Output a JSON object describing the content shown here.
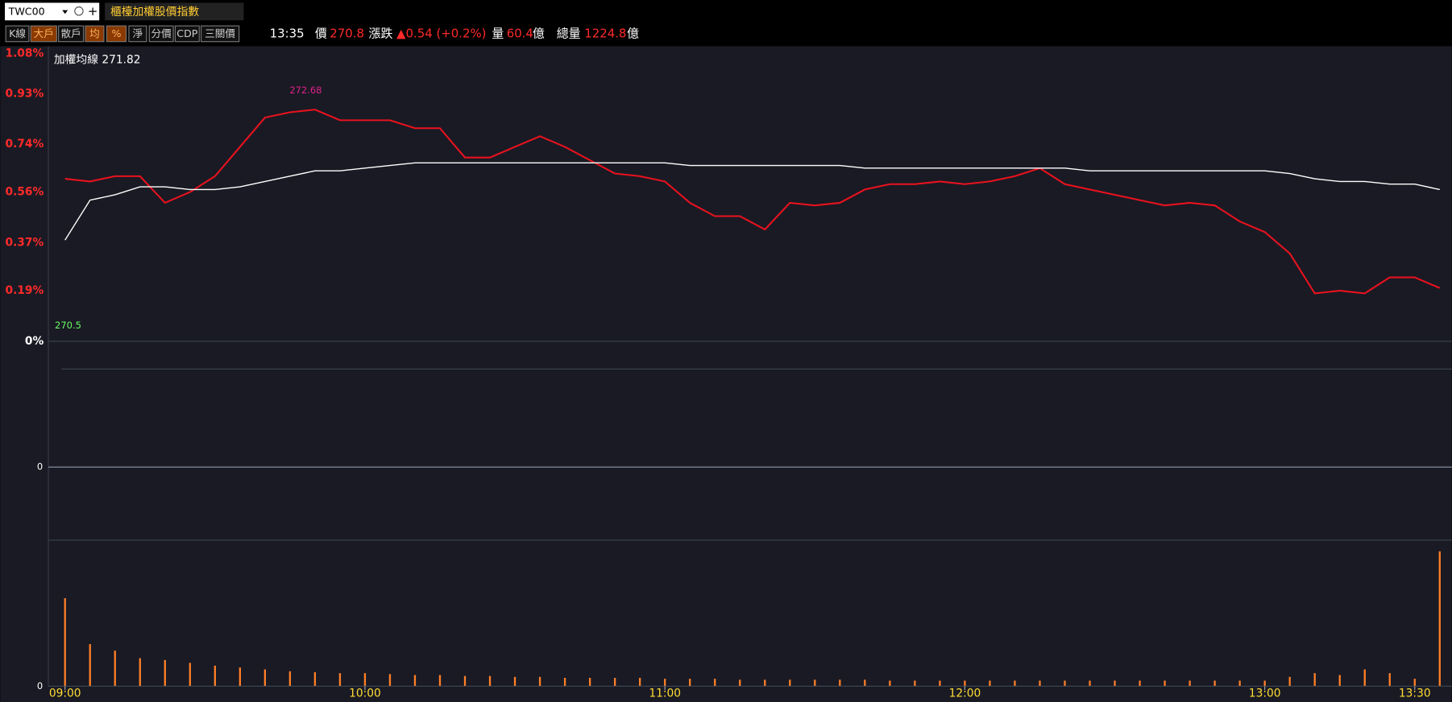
{
  "header": {
    "symbol": "TWC00",
    "name": "櫃檯加權股價指數",
    "buttons": [
      "K線",
      "大戶",
      "散戶",
      "均",
      "%",
      "淨",
      "分價",
      "CDP",
      "三關價"
    ]
  },
  "quote": {
    "time": "13:35",
    "price_label": "價",
    "price": "270.8",
    "change_label": "漲跌",
    "change": "▲0.54 (+0.2%)",
    "volume_label": "量",
    "volume": "60.4",
    "volume_unit": "億",
    "total_label": "總量",
    "total": "1224.8",
    "total_unit": "億"
  },
  "chart_data": [
    {
      "type": "line",
      "legend_label": "加權均線 271.82",
      "max_label": "272.68",
      "base_label": "270.5",
      "x": [
        "09:00",
        "09:05",
        "09:10",
        "09:15",
        "09:20",
        "09:25",
        "09:30",
        "09:35",
        "09:40",
        "09:45",
        "09:50",
        "09:55",
        "10:00",
        "10:05",
        "10:10",
        "10:15",
        "10:20",
        "10:25",
        "10:30",
        "10:35",
        "10:40",
        "10:45",
        "10:50",
        "10:55",
        "11:00",
        "11:05",
        "11:10",
        "11:15",
        "11:20",
        "11:25",
        "11:30",
        "11:35",
        "11:40",
        "11:45",
        "11:50",
        "11:55",
        "12:00",
        "12:05",
        "12:10",
        "12:15",
        "12:20",
        "12:25",
        "12:30",
        "12:35",
        "12:40",
        "12:45",
        "12:50",
        "12:55",
        "13:00",
        "13:05",
        "13:10",
        "13:15",
        "13:20",
        "13:25",
        "13:30",
        "13:35"
      ],
      "ylim": [
        0,
        1.08
      ],
      "yticks": [
        {
          "value": 0,
          "label": "0%"
        },
        {
          "value": 0.19,
          "label": "0.19%"
        },
        {
          "value": 0.37,
          "label": "0.37%"
        },
        {
          "value": 0.56,
          "label": "0.56%"
        },
        {
          "value": 0.74,
          "label": "0.74%"
        },
        {
          "value": 0.93,
          "label": "0.93%"
        },
        {
          "value": 1.08,
          "label": "1.08%"
        }
      ],
      "series": [
        {
          "color": "#e8121e",
          "values": [
            0.61,
            0.6,
            0.62,
            0.62,
            0.52,
            0.56,
            0.62,
            0.73,
            0.84,
            0.86,
            0.87,
            0.83,
            0.83,
            0.83,
            0.8,
            0.8,
            0.69,
            0.69,
            0.73,
            0.77,
            0.73,
            0.68,
            0.63,
            0.62,
            0.6,
            0.52,
            0.47,
            0.47,
            0.42,
            0.52,
            0.51,
            0.52,
            0.57,
            0.59,
            0.59,
            0.6,
            0.59,
            0.6,
            0.62,
            0.65,
            0.59,
            0.57,
            0.55,
            0.53,
            0.51,
            0.52,
            0.51,
            0.45,
            0.41,
            0.33,
            0.18,
            0.19,
            0.18,
            0.24,
            0.24,
            0.2
          ]
        },
        {
          "color": "#ffffff",
          "values": [
            0.38,
            0.53,
            0.55,
            0.58,
            0.58,
            0.57,
            0.57,
            0.58,
            0.6,
            0.62,
            0.64,
            0.64,
            0.65,
            0.66,
            0.67,
            0.67,
            0.67,
            0.67,
            0.67,
            0.67,
            0.67,
            0.67,
            0.67,
            0.67,
            0.67,
            0.66,
            0.66,
            0.66,
            0.66,
            0.66,
            0.66,
            0.66,
            0.65,
            0.65,
            0.65,
            0.65,
            0.65,
            0.65,
            0.65,
            0.65,
            0.65,
            0.64,
            0.64,
            0.64,
            0.64,
            0.64,
            0.64,
            0.64,
            0.64,
            0.63,
            0.61,
            0.6,
            0.6,
            0.59,
            0.59,
            0.57
          ]
        }
      ]
    },
    {
      "type": "line",
      "ylim": [
        -1,
        1
      ],
      "yticks": [
        0
      ],
      "series": []
    },
    {
      "type": "bar",
      "color": "#ff7f27",
      "x": [
        "09:00",
        "09:05",
        "09:10",
        "09:15",
        "09:20",
        "09:25",
        "09:30",
        "09:35",
        "09:40",
        "09:45",
        "09:50",
        "09:55",
        "10:00",
        "10:05",
        "10:10",
        "10:15",
        "10:20",
        "10:25",
        "10:30",
        "10:35",
        "10:40",
        "10:45",
        "10:50",
        "10:55",
        "11:00",
        "11:05",
        "11:10",
        "11:15",
        "11:20",
        "11:25",
        "11:30",
        "11:35",
        "11:40",
        "11:45",
        "11:50",
        "11:55",
        "12:00",
        "12:05",
        "12:10",
        "12:15",
        "12:20",
        "12:25",
        "12:30",
        "12:35",
        "12:40",
        "12:45",
        "12:50",
        "12:55",
        "13:00",
        "13:05",
        "13:10",
        "13:15",
        "13:20",
        "13:25",
        "13:30",
        "13:35"
      ],
      "values": [
        94,
        45,
        38,
        30,
        28,
        25,
        22,
        20,
        18,
        16,
        15,
        14,
        14,
        13,
        12,
        12,
        11,
        11,
        10,
        10,
        9,
        9,
        9,
        9,
        8,
        8,
        8,
        7,
        7,
        7,
        7,
        7,
        7,
        6,
        6,
        6,
        6,
        6,
        6,
        6,
        6,
        6,
        6,
        6,
        6,
        6,
        6,
        6,
        6,
        10,
        14,
        12,
        18,
        14,
        8,
        144
      ],
      "ylim": [
        0,
        150
      ],
      "yticks": [
        0
      ],
      "xticks": [
        "09:00",
        "10:00",
        "11:00",
        "12:00",
        "13:00",
        "13:30"
      ]
    }
  ]
}
